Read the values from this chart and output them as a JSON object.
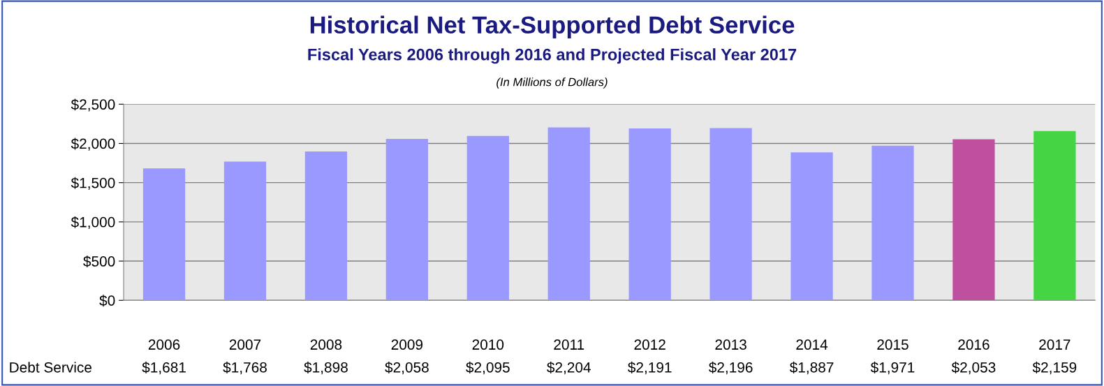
{
  "chart_data": {
    "type": "bar",
    "title": "Historical Net Tax-Supported Debt Service",
    "subtitle": "Fiscal Years 2006 through 2016 and Projected Fiscal Year 2017",
    "annotations": [
      "(In Millions of Dollars)",
      "Debt Service"
    ],
    "categories": [
      "2006",
      "2007",
      "2008",
      "2009",
      "2010",
      "2011",
      "2012",
      "2013",
      "2014",
      "2015",
      "2016",
      "2017"
    ],
    "values": [
      1681,
      1768,
      1898,
      2058,
      2095,
      2204,
      2191,
      2196,
      1887,
      1971,
      2053,
      2159
    ],
    "value_labels": [
      "$1,681",
      "$1,768",
      "$1,898",
      "$2,058",
      "$2,095",
      "$2,204",
      "$2,191",
      "$2,196",
      "$1,887",
      "$1,971",
      "$2,053",
      "$2,159"
    ],
    "colors": [
      "#9999ff",
      "#9999ff",
      "#9999ff",
      "#9999ff",
      "#9999ff",
      "#9999ff",
      "#9999ff",
      "#9999ff",
      "#9999ff",
      "#9999ff",
      "#bf509f",
      "#44d444"
    ],
    "ylim": [
      0,
      2500
    ],
    "yticks": [
      {
        "value": 0,
        "label": "$0"
      },
      {
        "value": 500,
        "label": "$500"
      },
      {
        "value": 1000,
        "label": "$1,000"
      },
      {
        "value": 1500,
        "label": "$1,500"
      },
      {
        "value": 2000,
        "label": "$2,000"
      },
      {
        "value": 2500,
        "label": "$2,500"
      }
    ],
    "grid": "y",
    "legend": false
  }
}
